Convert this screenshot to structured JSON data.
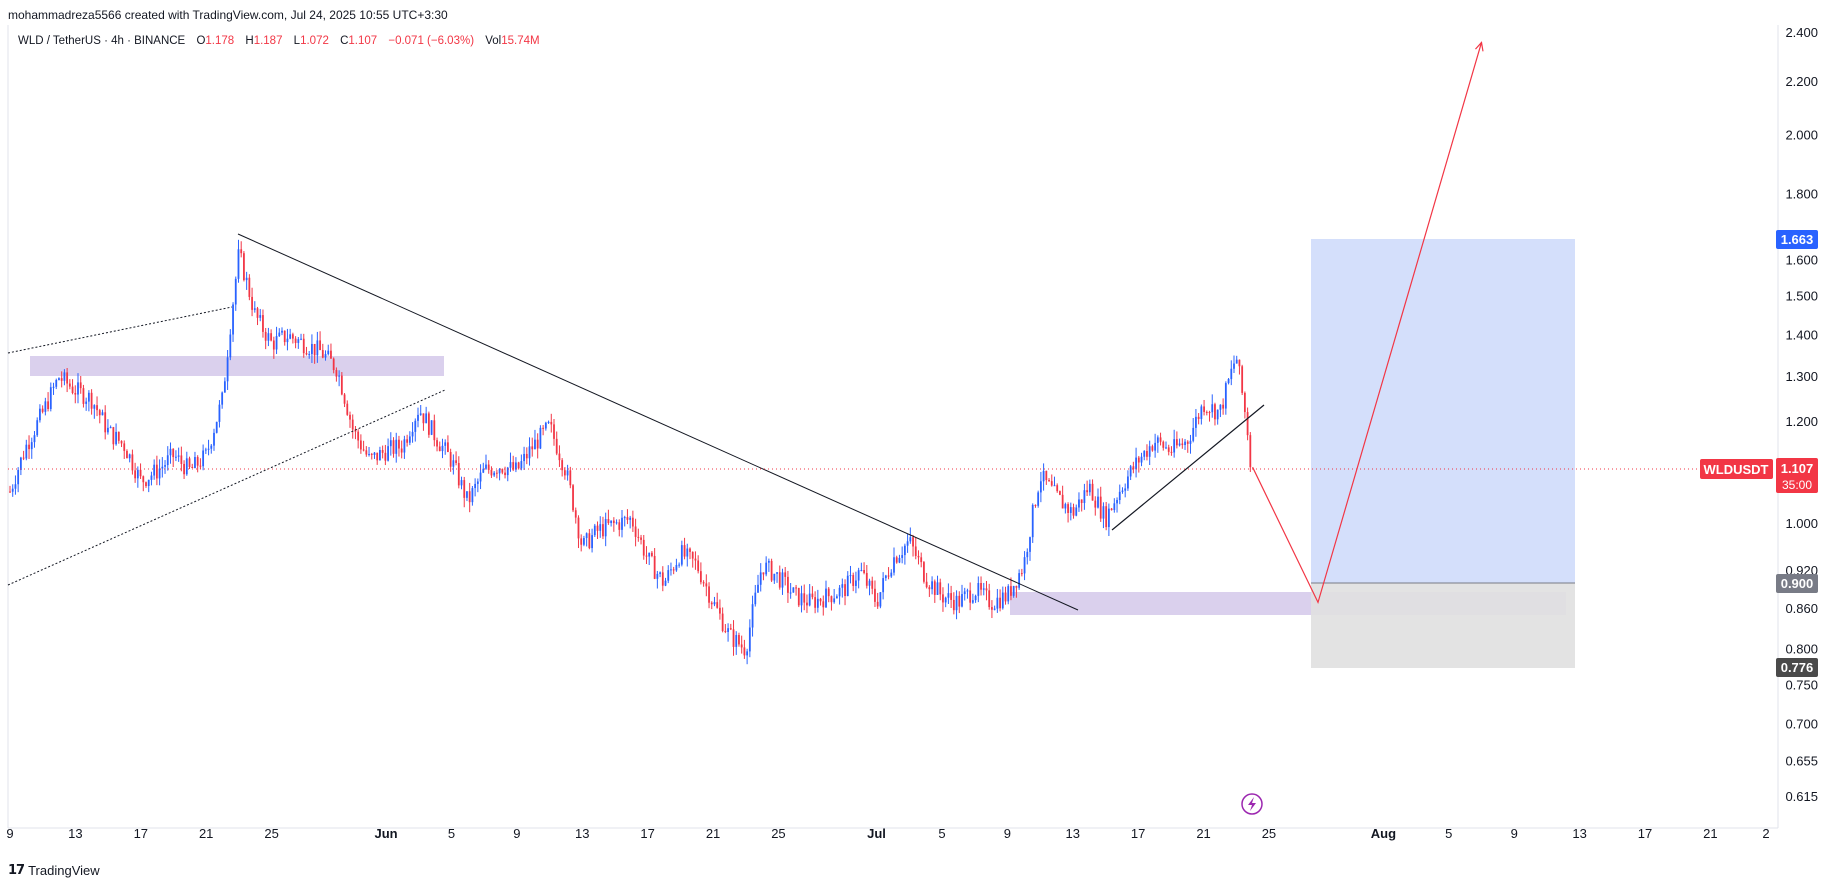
{
  "header": {
    "attribution": "mohammadreza5566 created with TradingView.com, Jul 24, 2025 10:55 UTC+3:30"
  },
  "legend": {
    "symbol": "WLD / TetherUS · 4h · BINANCE",
    "o_label": "O",
    "o_val": "1.178",
    "h_label": "H",
    "h_val": "1.187",
    "l_label": "L",
    "l_val": "1.072",
    "c_label": "C",
    "c_val": "1.107",
    "change": "−0.071 (−6.03%)",
    "vol_label": "Vol",
    "vol_val": "15.74M"
  },
  "footer": {
    "brand": "TradingView"
  },
  "colors": {
    "up": "#2962ff",
    "down": "#f23645",
    "text": "#131722",
    "zone": "#d1c4e9",
    "target_box": "#cfdcfb",
    "stop_box": "#e0e0e0",
    "price_tag": "#f23645",
    "tp_tag": "#2962ff",
    "entry_tag": "#787b86",
    "sl_tag": "#4a4a4a"
  },
  "chart_data": {
    "type": "candlestick",
    "symbol": "WLDUSDT",
    "timeframe": "4h",
    "scale": "log",
    "y_ticks": [
      "2.400",
      "2.200",
      "2.000",
      "1.800",
      "1.600",
      "1.500",
      "1.400",
      "1.300",
      "1.200",
      "1.000",
      "0.920",
      "0.860",
      "0.800",
      "0.750",
      "0.700",
      "0.655",
      "0.615"
    ],
    "x_ticks": [
      "9",
      "13",
      "17",
      "21",
      "25",
      "Jun",
      "5",
      "9",
      "13",
      "17",
      "21",
      "25",
      "Jul",
      "5",
      "9",
      "13",
      "17",
      "21",
      "25",
      "Aug",
      "5",
      "9",
      "13",
      "17",
      "21",
      "2"
    ],
    "last_price": {
      "label": "WLDUSDT",
      "value": "1.107",
      "countdown": "35:00"
    },
    "price_tags": [
      {
        "name": "target",
        "value": "1.663"
      },
      {
        "name": "entry",
        "value": "0.900"
      },
      {
        "name": "stop",
        "value": "0.776"
      }
    ],
    "price_path": [
      [
        "May 9",
        1.06
      ],
      [
        "May 10",
        1.15
      ],
      [
        "May 11",
        1.22
      ],
      [
        "May 12",
        1.3
      ],
      [
        "May 13",
        1.27
      ],
      [
        "May 14",
        1.25
      ],
      [
        "May 15",
        1.18
      ],
      [
        "May 16",
        1.15
      ],
      [
        "May 17",
        1.08
      ],
      [
        "May 18",
        1.1
      ],
      [
        "May 19",
        1.13
      ],
      [
        "May 20",
        1.1
      ],
      [
        "May 21",
        1.13
      ],
      [
        "May 22",
        1.25
      ],
      [
        "May 23",
        1.62
      ],
      [
        "May 24",
        1.45
      ],
      [
        "May 25",
        1.38
      ],
      [
        "May 26",
        1.4
      ],
      [
        "May 27",
        1.38
      ],
      [
        "May 28",
        1.36
      ],
      [
        "May 29",
        1.32
      ],
      [
        "May 30",
        1.18
      ],
      [
        "May 31",
        1.12
      ],
      [
        "Jun 1",
        1.14
      ],
      [
        "Jun 2",
        1.15
      ],
      [
        "Jun 3",
        1.23
      ],
      [
        "Jun 4",
        1.17
      ],
      [
        "Jun 5",
        1.12
      ],
      [
        "Jun 6",
        1.04
      ],
      [
        "Jun 7",
        1.1
      ],
      [
        "Jun 8",
        1.11
      ],
      [
        "Jun 9",
        1.1
      ],
      [
        "Jun 10",
        1.15
      ],
      [
        "Jun 11",
        1.19
      ],
      [
        "Jun 12",
        1.1
      ],
      [
        "Jun 13",
        0.96
      ],
      [
        "Jun 14",
        0.99
      ],
      [
        "Jun 15",
        1.0
      ],
      [
        "Jun 16",
        1.01
      ],
      [
        "Jun 17",
        0.94
      ],
      [
        "Jun 18",
        0.9
      ],
      [
        "Jun 19",
        0.95
      ],
      [
        "Jun 20",
        0.93
      ],
      [
        "Jun 21",
        0.87
      ],
      [
        "Jun 22",
        0.82
      ],
      [
        "Jun 23",
        0.8
      ],
      [
        "Jun 24",
        0.93
      ],
      [
        "Jun 25",
        0.91
      ],
      [
        "Jun 26",
        0.88
      ],
      [
        "Jun 27",
        0.87
      ],
      [
        "Jun 28",
        0.88
      ],
      [
        "Jun 29",
        0.89
      ],
      [
        "Jun 30",
        0.92
      ],
      [
        "Jul 1",
        0.87
      ],
      [
        "Jul 2",
        0.94
      ],
      [
        "Jul 3",
        0.97
      ],
      [
        "Jul 4",
        0.91
      ],
      [
        "Jul 5",
        0.88
      ],
      [
        "Jul 6",
        0.87
      ],
      [
        "Jul 7",
        0.89
      ],
      [
        "Jul 8",
        0.87
      ],
      [
        "Jul 9",
        0.88
      ],
      [
        "Jul 10",
        0.93
      ],
      [
        "Jul 11",
        1.09
      ],
      [
        "Jul 12",
        1.05
      ],
      [
        "Jul 13",
        1.02
      ],
      [
        "Jul 14",
        1.07
      ],
      [
        "Jul 15",
        1.01
      ],
      [
        "Jul 16",
        1.07
      ],
      [
        "Jul 17",
        1.12
      ],
      [
        "Jul 18",
        1.16
      ],
      [
        "Jul 19",
        1.14
      ],
      [
        "Jul 20",
        1.16
      ],
      [
        "Jul 21",
        1.24
      ],
      [
        "Jul 22",
        1.22
      ],
      [
        "Jul 23",
        1.35
      ],
      [
        "Jul 24",
        1.107
      ]
    ],
    "projection": [
      [
        "Jul 24",
        1.107
      ],
      [
        "Jul 28",
        0.87
      ],
      [
        "Aug 7",
        2.36
      ]
    ]
  }
}
